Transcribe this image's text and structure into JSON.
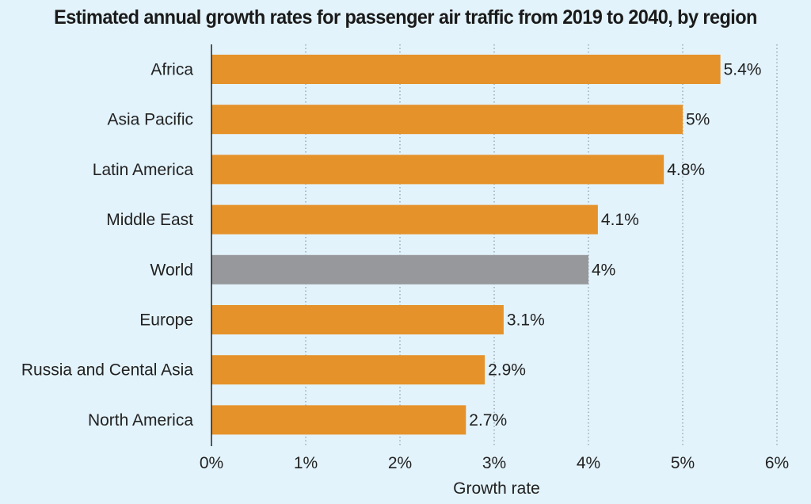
{
  "chart_data": {
    "type": "bar",
    "orientation": "horizontal",
    "title": "Estimated annual growth rates for passenger air traffic from 2019 to 2040, by region",
    "xlabel": "Growth rate",
    "ylabel": "",
    "xlim": [
      0,
      6
    ],
    "ticks": [
      {
        "value": 0,
        "label": "0%"
      },
      {
        "value": 1,
        "label": "1%"
      },
      {
        "value": 2,
        "label": "2%"
      },
      {
        "value": 3,
        "label": "3%"
      },
      {
        "value": 4,
        "label": "4%"
      },
      {
        "value": 5,
        "label": "5%"
      },
      {
        "value": 6,
        "label": "6%"
      }
    ],
    "grid": "vertical-dotted",
    "legend": "none",
    "colors": {
      "bar": "#e5922a",
      "highlight": "#97989b",
      "grid": "#8a9aa3",
      "axis": "#222222",
      "text": "#222222"
    },
    "bars": [
      {
        "category": "Africa",
        "value": 5.4,
        "label": "5.4%",
        "highlight": false
      },
      {
        "category": "Asia Pacific",
        "value": 5.0,
        "label": "5%",
        "highlight": false
      },
      {
        "category": "Latin America",
        "value": 4.8,
        "label": "4.8%",
        "highlight": false
      },
      {
        "category": "Middle East",
        "value": 4.1,
        "label": "4.1%",
        "highlight": false
      },
      {
        "category": "World",
        "value": 4.0,
        "label": "4%",
        "highlight": true
      },
      {
        "category": "Europe",
        "value": 3.1,
        "label": "3.1%",
        "highlight": false
      },
      {
        "category": "Russia and Cental Asia",
        "value": 2.9,
        "label": "2.9%",
        "highlight": false
      },
      {
        "category": "North America",
        "value": 2.7,
        "label": "2.7%",
        "highlight": false
      }
    ]
  }
}
